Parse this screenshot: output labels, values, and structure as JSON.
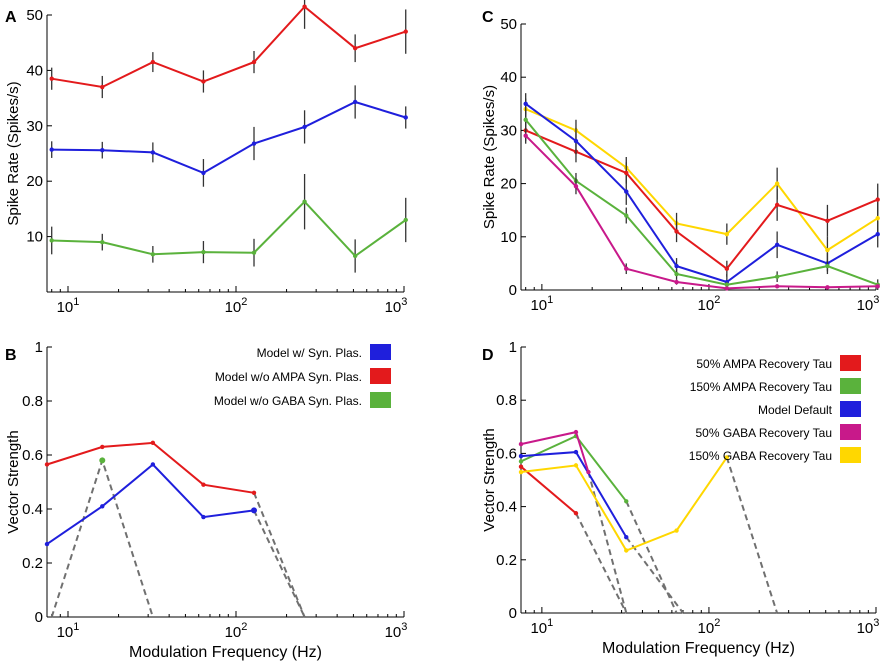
{
  "chart_data": [
    {
      "panel": "A",
      "type": "line",
      "xscale": "log",
      "xlim": [
        7.5,
        1000
      ],
      "ylim": [
        0,
        50
      ],
      "yticks": [
        10,
        20,
        30,
        40,
        50
      ],
      "ylabel": "Spike Rate (Spikes/s)",
      "xlabel": "",
      "grid": false,
      "series": [
        {
          "name": "Model w/o AMPA Syn. Plas.",
          "color": "#e31a1c",
          "x": [
            8,
            16,
            32,
            64,
            128,
            256,
            512,
            1024
          ],
          "y": [
            38.5,
            37,
            41.5,
            38,
            41.5,
            51.5,
            44,
            47
          ],
          "err": [
            2,
            2,
            1.8,
            2,
            2,
            4,
            2.5,
            4
          ]
        },
        {
          "name": "Model w/ Syn. Plas.",
          "color": "#1f1fdc",
          "x": [
            8,
            16,
            32,
            64,
            128,
            256,
            512,
            1024
          ],
          "y": [
            25.7,
            25.6,
            25.2,
            21.5,
            26.8,
            29.8,
            34.3,
            31.5
          ],
          "err": [
            1.5,
            1.5,
            1.8,
            2.5,
            3,
            3,
            3,
            2
          ]
        },
        {
          "name": "Model w/o GABA Syn. Plas.",
          "color": "#5ab23c",
          "x": [
            8,
            16,
            32,
            64,
            128,
            256,
            512,
            1024
          ],
          "y": [
            9.3,
            9,
            6.8,
            7.2,
            7.1,
            16.3,
            6.5,
            13
          ],
          "err": [
            2.5,
            1.5,
            1.5,
            2,
            2.5,
            5,
            3,
            4
          ]
        }
      ]
    },
    {
      "panel": "B",
      "type": "line",
      "xscale": "log",
      "xlim": [
        7.5,
        1000
      ],
      "ylim": [
        0,
        1
      ],
      "yticks": [
        0,
        0.2,
        0.4,
        0.6,
        0.8,
        1
      ],
      "ylabel": "Vector Strength",
      "xlabel": "Modulation Frequency (Hz)",
      "legend": [
        "Model w/ Syn. Plas.",
        "Model w/o AMPA Syn. Plas.",
        "Model w/o GABA Syn. Plas."
      ],
      "legend_colors": [
        "#1f1fdc",
        "#e31a1c",
        "#5ab23c"
      ],
      "legend_position": "top-right",
      "series": [
        {
          "name": "Model w/o AMPA Syn. Plas.",
          "color": "#e31a1c",
          "x": [
            7.5,
            16,
            32,
            64,
            128
          ],
          "y": [
            0.565,
            0.63,
            0.645,
            0.49,
            0.46
          ]
        },
        {
          "name": "Model w/ Syn. Plas.",
          "color": "#1f1fdc",
          "x": [
            7.5,
            16,
            32,
            64,
            128
          ],
          "y": [
            0.27,
            0.41,
            0.565,
            0.37,
            0.395
          ]
        }
      ],
      "dashed": [
        {
          "x": [
            8,
            16,
            32
          ],
          "y": [
            0,
            0.58,
            0
          ]
        },
        {
          "x": [
            128,
            256
          ],
          "y": [
            0.46,
            0
          ]
        },
        {
          "x": [
            128,
            256
          ],
          "y": [
            0.395,
            0
          ]
        }
      ],
      "markers": [
        {
          "x": 16,
          "y": 0.58,
          "color": "#5ab23c"
        },
        {
          "x": 128,
          "y": 0.395,
          "color": "#1f1fdc"
        }
      ]
    },
    {
      "panel": "C",
      "type": "line",
      "xscale": "log",
      "xlim": [
        7.5,
        1000
      ],
      "ylim": [
        0,
        50
      ],
      "yticks": [
        0,
        10,
        20,
        30,
        40,
        50
      ],
      "ylabel": "Spike Rate (Spikes/s)",
      "xlabel": "",
      "series": [
        {
          "name": "150% GABA Recovery Tau",
          "color": "#ffd700",
          "x": [
            8,
            16,
            32,
            64,
            128,
            256,
            512,
            1024
          ],
          "y": [
            34,
            30,
            23,
            12.5,
            10.5,
            20,
            7.5,
            13.5
          ],
          "err": [
            2,
            2,
            2,
            2,
            2,
            3,
            2.5,
            3
          ]
        },
        {
          "name": "50% AMPA Recovery Tau",
          "color": "#e31a1c",
          "x": [
            8,
            16,
            32,
            64,
            128,
            256,
            512,
            1024
          ],
          "y": [
            30,
            26,
            22,
            11,
            4,
            16,
            13,
            17
          ],
          "err": [
            2,
            2,
            2,
            2,
            1.5,
            3,
            3,
            3
          ]
        },
        {
          "name": "Model Default",
          "color": "#1f1fdc",
          "x": [
            8,
            16,
            32,
            64,
            128,
            256,
            512,
            1024
          ],
          "y": [
            35,
            28,
            18.5,
            4.5,
            1.5,
            8.5,
            5,
            10.5
          ],
          "err": [
            2,
            2.5,
            2.5,
            1.5,
            1.5,
            2.5,
            2,
            2.5
          ]
        },
        {
          "name": "150% AMPA Recovery Tau",
          "color": "#5ab23c",
          "x": [
            8,
            16,
            32,
            64,
            128,
            256,
            512,
            1024
          ],
          "y": [
            32,
            20.5,
            14,
            3,
            1,
            2.5,
            4.5,
            1
          ],
          "err": [
            2,
            1.5,
            1.5,
            1,
            0.5,
            1,
            1,
            1
          ]
        },
        {
          "name": "50% GABA Recovery Tau",
          "color": "#c8198a",
          "x": [
            8,
            16,
            32,
            64,
            128,
            256,
            512,
            1024
          ],
          "y": [
            29,
            19.5,
            4,
            1.5,
            0.3,
            0.7,
            0.5,
            0.7
          ],
          "err": [
            1.5,
            1.5,
            1,
            0.5,
            0.3,
            0.3,
            0.3,
            0.3
          ]
        }
      ]
    },
    {
      "panel": "D",
      "type": "line",
      "xscale": "log",
      "xlim": [
        7.5,
        1000
      ],
      "ylim": [
        0,
        1
      ],
      "yticks": [
        0,
        0.2,
        0.4,
        0.6,
        0.8,
        1
      ],
      "ylabel": "Vector Strength",
      "xlabel": "Modulation Frequency (Hz)",
      "legend": [
        "50% AMPA Recovery Tau",
        "150% AMPA Recovery Tau",
        "Model Default",
        "50% GABA Recovery Tau",
        "150% GABA Recovery Tau"
      ],
      "legend_colors": [
        "#e31a1c",
        "#5ab23c",
        "#1f1fdc",
        "#c8198a",
        "#ffd700"
      ],
      "legend_position": "top-right",
      "series": [
        {
          "name": "50% AMPA Recovery Tau",
          "color": "#e31a1c",
          "x": [
            7.5,
            16
          ],
          "y": [
            0.55,
            0.375
          ]
        },
        {
          "name": "150% AMPA Recovery Tau",
          "color": "#5ab23c",
          "x": [
            7.5,
            16,
            32
          ],
          "y": [
            0.57,
            0.665,
            0.42
          ]
        },
        {
          "name": "Model Default",
          "color": "#1f1fdc",
          "x": [
            7.5,
            16,
            32
          ],
          "y": [
            0.59,
            0.605,
            0.285
          ]
        },
        {
          "name": "50% GABA Recovery Tau",
          "color": "#c8198a",
          "x": [
            7.5,
            16,
            19
          ],
          "y": [
            0.635,
            0.68,
            0.53
          ]
        },
        {
          "name": "150% GABA Recovery Tau",
          "color": "#ffd700",
          "x": [
            7.5,
            16,
            32,
            64,
            128
          ],
          "y": [
            0.53,
            0.555,
            0.235,
            0.31,
            0.585
          ]
        }
      ],
      "dashed": [
        {
          "x": [
            16,
            32
          ],
          "y": [
            0.375,
            0
          ]
        },
        {
          "x": [
            19,
            32
          ],
          "y": [
            0.53,
            0
          ]
        },
        {
          "x": [
            32,
            64
          ],
          "y": [
            0.42,
            0
          ]
        },
        {
          "x": [
            32,
            70
          ],
          "y": [
            0.285,
            0
          ]
        },
        {
          "x": [
            128,
            256
          ],
          "y": [
            0.585,
            0
          ]
        }
      ]
    }
  ],
  "panel_letters": [
    "A",
    "B",
    "C",
    "D"
  ],
  "xtick_labels": [
    "10",
    "10",
    "10"
  ],
  "xtick_exponents": [
    "1",
    "2",
    "3"
  ]
}
